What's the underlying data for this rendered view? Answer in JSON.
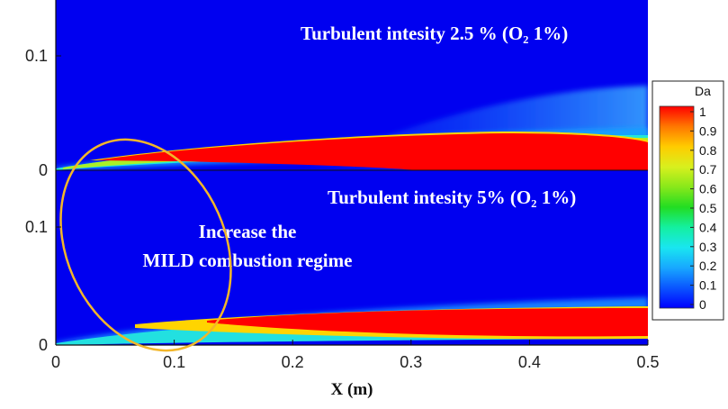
{
  "chart_data": {
    "type": "heatmap",
    "variable": "Da",
    "xlabel": "X (m)",
    "xlim": [
      0,
      0.5
    ],
    "x_ticks": [
      "0",
      "0.1",
      "0.2",
      "0.3",
      "0.4",
      "0.5"
    ],
    "y_ticks": [
      "0",
      "0.1"
    ],
    "colorbar": {
      "title": "Da",
      "range": [
        0,
        1
      ],
      "ticks": [
        "1",
        "0.9",
        "0.8",
        "0.7",
        "0.6",
        "0.5",
        "0.4",
        "0.3",
        "0.2",
        "0.1",
        "0"
      ],
      "colors": [
        "#0000ff",
        "#0a55ff",
        "#18a8ff",
        "#19e6f0",
        "#14f0a0",
        "#22dd22",
        "#88e81a",
        "#d8f01e",
        "#ffcc00",
        "#ff7700",
        "#ff0000"
      ]
    },
    "panels": [
      {
        "title": "Turbulent intesity 2.5 %  (O₂ 1%)",
        "red_core": {
          "x": [
            0.02,
            0.1,
            0.2,
            0.3,
            0.38,
            0.45,
            0.5
          ],
          "y_top": [
            0.012,
            0.019,
            0.023,
            0.026,
            0.028,
            0.027,
            0.024
          ],
          "y_bottom": [
            0.008,
            0.007,
            0.006,
            0.0,
            0.0,
            0.0,
            0.0
          ]
        }
      },
      {
        "title": "Turbulent intesity 5% (O₂ 1%)",
        "red_core": {
          "x": [
            0.12,
            0.2,
            0.3,
            0.4,
            0.5
          ],
          "y_top": [
            0.016,
            0.02,
            0.022,
            0.023,
            0.024
          ],
          "y_bottom": [
            0.014,
            0.01,
            0.006,
            0.004,
            0.004
          ]
        }
      }
    ],
    "annotation": "Increase the MILD combustion regime",
    "annotation_lines": [
      "Increase the",
      "MILD combustion regime"
    ]
  }
}
